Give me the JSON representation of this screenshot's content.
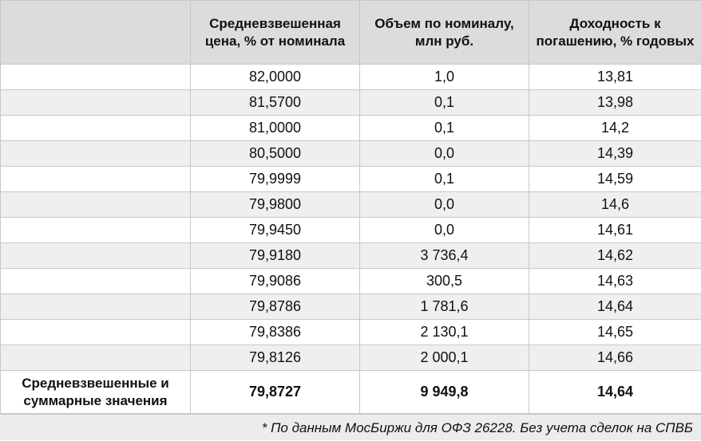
{
  "table": {
    "headers": [
      "",
      "Средневзвешенная цена, % от номинала",
      "Объем по номиналу, млн руб.",
      "Доходность к погашению, % годовых"
    ],
    "rows": [
      [
        "",
        "82,0000",
        "1,0",
        "13,81"
      ],
      [
        "",
        "81,5700",
        "0,1",
        "13,98"
      ],
      [
        "",
        "81,0000",
        "0,1",
        "14,2"
      ],
      [
        "",
        "80,5000",
        "0,0",
        "14,39"
      ],
      [
        "",
        "79,9999",
        "0,1",
        "14,59"
      ],
      [
        "",
        "79,9800",
        "0,0",
        "14,6"
      ],
      [
        "",
        "79,9450",
        "0,0",
        "14,61"
      ],
      [
        "",
        "79,9180",
        "3 736,4",
        "14,62"
      ],
      [
        "",
        "79,9086",
        "300,5",
        "14,63"
      ],
      [
        "",
        "79,8786",
        "1 781,6",
        "14,64"
      ],
      [
        "",
        "79,8386",
        "2 130,1",
        "14,65"
      ],
      [
        "",
        "79,8126",
        "2 000,1",
        "14,66"
      ]
    ],
    "total": {
      "label": "Средневзвешенные и суммарные значения",
      "price": "79,8727",
      "volume": "9 949,8",
      "yield": "14,64"
    }
  },
  "footnote": "* По данным МосБиржи для ОФЗ 26228. Без учета сделок на СПВБ"
}
